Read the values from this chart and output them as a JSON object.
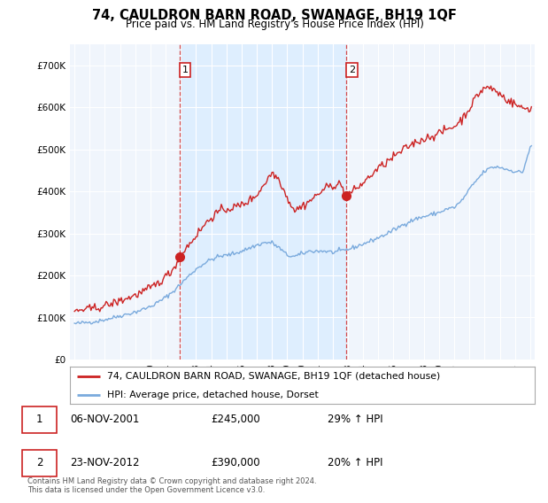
{
  "title": "74, CAULDRON BARN ROAD, SWANAGE, BH19 1QF",
  "subtitle": "Price paid vs. HM Land Registry's House Price Index (HPI)",
  "legend_line1": "74, CAULDRON BARN ROAD, SWANAGE, BH19 1QF (detached house)",
  "legend_line2": "HPI: Average price, detached house, Dorset",
  "sale1_date": "06-NOV-2001",
  "sale1_price": "£245,000",
  "sale1_hpi": "29% ↑ HPI",
  "sale2_date": "23-NOV-2012",
  "sale2_price": "£390,000",
  "sale2_hpi": "20% ↑ HPI",
  "footnote": "Contains HM Land Registry data © Crown copyright and database right 2024.\nThis data is licensed under the Open Government Licence v3.0.",
  "hpi_color": "#7aaadd",
  "price_color": "#cc2222",
  "vline_color": "#cc2222",
  "shade_color": "#ddeeff",
  "background_color": "#f0f5fc",
  "grid_color": "#ffffff",
  "ylim": [
    0,
    750000
  ],
  "yticks": [
    0,
    100000,
    200000,
    300000,
    400000,
    500000,
    600000,
    700000
  ],
  "sale1_x": 2001.92,
  "sale1_y": 245000,
  "sale2_x": 2012.9,
  "sale2_y": 390000,
  "xmin": 1994.7,
  "xmax": 2025.3
}
